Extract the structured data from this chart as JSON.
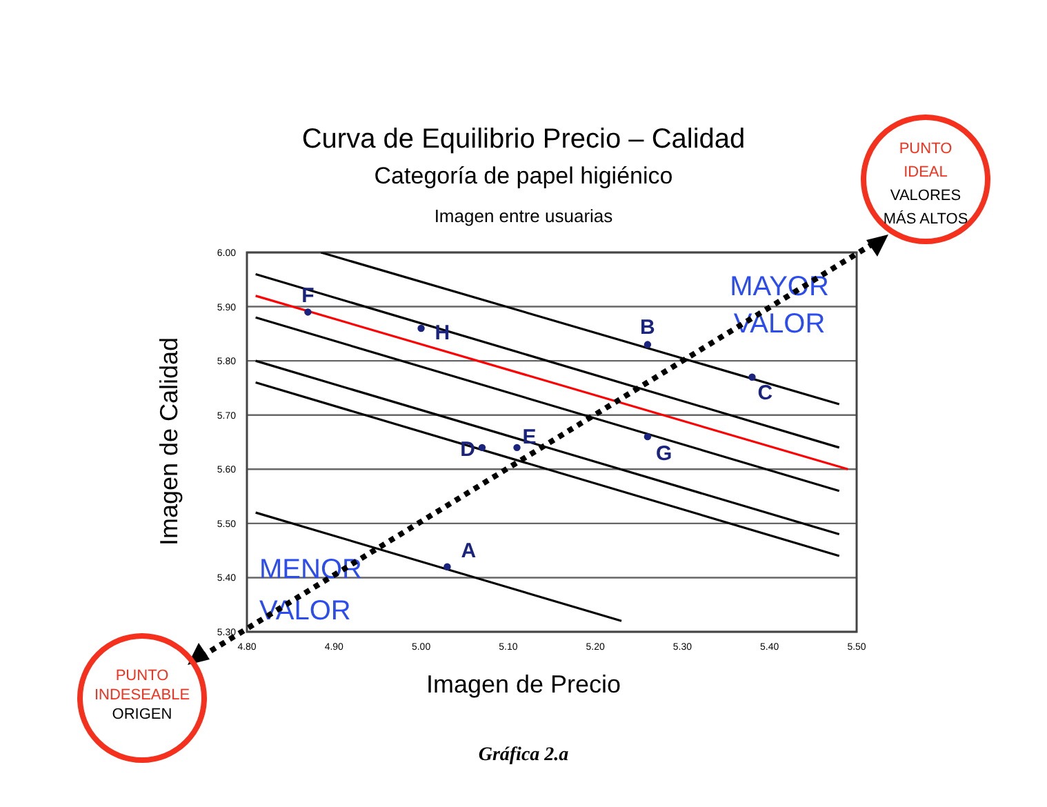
{
  "chart_data": {
    "type": "scatter",
    "title": "Curva de Equilibrio Precio – Calidad",
    "subtitle": "Categoría de papel higiénico",
    "xlabel": "Imagen de Precio",
    "ylabel": "Imagen de Calidad",
    "annotations": [
      "Imagen entre usuarias",
      "MAYOR VALOR",
      "MENOR VALOR",
      "PUNTO IDEAL",
      "VALORES MÁS ALTOS",
      "PUNTO INDESEABLE",
      "ORIGEN",
      "Gráfica 2.a"
    ],
    "xlim": [
      4.8,
      5.5
    ],
    "xticks": [
      {
        "value": 4.8,
        "label": "4.80"
      },
      {
        "value": 4.9,
        "label": "4.90"
      },
      {
        "value": 5.0,
        "label": "5.00"
      },
      {
        "value": 5.1,
        "label": "5.10"
      },
      {
        "value": 5.2,
        "label": "5.20"
      },
      {
        "value": 5.3,
        "label": "5.30"
      },
      {
        "value": 5.4,
        "label": "5.40"
      },
      {
        "value": 5.5,
        "label": "5.50"
      }
    ],
    "ylim": [
      5.3,
      6.0
    ],
    "yticks": [
      {
        "value": 5.3,
        "label": "5.30"
      },
      {
        "value": 5.4,
        "label": "5.40"
      },
      {
        "value": 5.5,
        "label": "5.50"
      },
      {
        "value": 5.6,
        "label": "5.60"
      },
      {
        "value": 5.7,
        "label": "5.70"
      },
      {
        "value": 5.8,
        "label": "5.80"
      },
      {
        "value": 5.9,
        "label": "5.90"
      },
      {
        "value": 6.0,
        "label": "6.00"
      }
    ],
    "grid": "y",
    "legend": false,
    "marker": "circle",
    "series": [
      {
        "type": "line",
        "color": "#000000",
        "marker": "none",
        "x": [
          4.885,
          5.48
        ],
        "values": [
          6.0,
          5.72
        ]
      },
      {
        "type": "line",
        "color": "#000000",
        "marker": "none",
        "x": [
          4.81,
          5.48
        ],
        "values": [
          5.96,
          5.64
        ]
      },
      {
        "type": "line",
        "color": "#ff0000",
        "marker": "none",
        "x": [
          4.81,
          5.49
        ],
        "values": [
          5.92,
          5.6
        ]
      },
      {
        "type": "line",
        "color": "#000000",
        "marker": "none",
        "x": [
          4.81,
          5.48
        ],
        "values": [
          5.88,
          5.56
        ]
      },
      {
        "type": "line",
        "color": "#000000",
        "marker": "none",
        "x": [
          4.81,
          5.48
        ],
        "values": [
          5.8,
          5.48
        ]
      },
      {
        "type": "line",
        "color": "#000000",
        "marker": "none",
        "x": [
          4.81,
          5.48
        ],
        "values": [
          5.76,
          5.44
        ]
      },
      {
        "type": "line",
        "color": "#000000",
        "marker": "none",
        "x": [
          4.81,
          5.23
        ],
        "values": [
          5.52,
          5.32
        ]
      },
      {
        "name": "F",
        "color": "#1a237e",
        "x": [
          4.87
        ],
        "values": [
          5.89
        ]
      },
      {
        "name": "H",
        "color": "#1a237e",
        "x": [
          5.0
        ],
        "values": [
          5.86
        ]
      },
      {
        "name": "B",
        "color": "#1a237e",
        "x": [
          5.26
        ],
        "values": [
          5.83
        ]
      },
      {
        "name": "C",
        "color": "#1a237e",
        "x": [
          5.38
        ],
        "values": [
          5.77
        ]
      },
      {
        "name": "D",
        "color": "#1a237e",
        "x": [
          5.07
        ],
        "values": [
          5.64
        ]
      },
      {
        "name": "E",
        "color": "#1a237e",
        "x": [
          5.11
        ],
        "values": [
          5.64
        ]
      },
      {
        "name": "G",
        "color": "#1a237e",
        "x": [
          5.26
        ],
        "values": [
          5.66
        ]
      },
      {
        "name": "A",
        "color": "#1a237e",
        "x": [
          5.03
        ],
        "values": [
          5.42
        ]
      }
    ]
  }
}
